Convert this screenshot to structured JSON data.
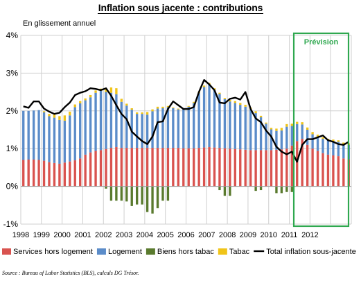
{
  "chart_data": {
    "type": "bar",
    "stacked": true,
    "title": "Inflation sous jacente : contributions",
    "subtitle": "En glissement annuel",
    "y_tick_labels": [
      "-1%",
      "0%",
      "1%",
      "2%",
      "3%",
      "4%"
    ],
    "y_ticks": [
      -1,
      0,
      1,
      2,
      3,
      4
    ],
    "ylim": [
      -1,
      4
    ],
    "x_tick_labels": [
      "1998",
      "1999",
      "2000",
      "2001",
      "2002",
      "2003",
      "2004",
      "2005",
      "2006",
      "2007",
      "2008",
      "2009",
      "2010",
      "2011",
      "2012"
    ],
    "period": {
      "start_year": 1998,
      "start_quarter": 1,
      "end_year": 2012,
      "end_quarter": 4,
      "frequency": "quarterly"
    },
    "forecast_label": "Prévision",
    "forecast_start": {
      "year": 2011,
      "quarter": 2
    },
    "grid": true,
    "legend_position": "bottom",
    "series": [
      {
        "name": "Services hors logement",
        "color": "#d9534f",
        "values": [
          0.7,
          0.71,
          0.71,
          0.7,
          0.68,
          0.64,
          0.62,
          0.6,
          0.63,
          0.66,
          0.69,
          0.74,
          0.84,
          0.9,
          0.94,
          0.96,
          0.99,
          1.02,
          1.04,
          1.02,
          1.02,
          1.02,
          1.02,
          1.02,
          1.02,
          1.02,
          1.02,
          1.02,
          1.02,
          1.02,
          1.02,
          1.01,
          1.01,
          1.01,
          1.02,
          1.03,
          1.04,
          1.03,
          1.02,
          1.01,
          1.0,
          0.99,
          0.98,
          0.97,
          0.96,
          0.96,
          0.96,
          0.96,
          0.96,
          0.97,
          0.98,
          1.0,
          1.08,
          1.2,
          1.26,
          1.1,
          1.0,
          0.94,
          0.88,
          0.84,
          0.82,
          0.8,
          0.74,
          0.72
        ]
      },
      {
        "name": "Logement",
        "color": "#5b8cc9",
        "values": [
          1.3,
          1.29,
          1.3,
          1.32,
          1.28,
          1.22,
          1.2,
          1.16,
          1.11,
          1.22,
          1.41,
          1.46,
          1.44,
          1.46,
          1.54,
          1.57,
          1.51,
          1.46,
          1.4,
          1.22,
          1.12,
          1.01,
          0.9,
          0.9,
          0.88,
          0.97,
          1.04,
          1.05,
          1.08,
          1.05,
          1.02,
          1.03,
          1.1,
          1.2,
          1.45,
          1.6,
          1.66,
          1.53,
          1.43,
          1.3,
          1.25,
          1.22,
          1.18,
          1.14,
          1.08,
          0.98,
          0.87,
          0.7,
          0.55,
          0.5,
          0.5,
          0.58,
          0.52,
          0.45,
          0.38,
          0.4,
          0.38,
          0.38,
          0.38,
          0.38,
          0.38,
          0.38,
          0.38,
          0.38
        ]
      },
      {
        "name": "Biens hors tabac",
        "color": "#5a7a2e",
        "values": [
          0.0,
          0.0,
          0.0,
          0.0,
          0.0,
          0.0,
          0.0,
          0.0,
          0.0,
          0.0,
          0.0,
          0.0,
          0.0,
          0.0,
          0.0,
          0.0,
          -0.06,
          -0.38,
          -0.38,
          -0.38,
          -0.4,
          -0.52,
          -0.48,
          -0.48,
          -0.68,
          -0.72,
          -0.58,
          -0.38,
          -0.38,
          0.0,
          0.0,
          0.0,
          0.0,
          0.0,
          0.0,
          0.0,
          0.0,
          0.0,
          -0.1,
          -0.25,
          -0.25,
          0.0,
          0.0,
          0.0,
          0.0,
          -0.12,
          -0.1,
          0.0,
          0.0,
          -0.18,
          -0.18,
          -0.15,
          -0.15,
          0.0,
          0.0,
          0.0,
          0.0,
          0.0,
          0.0,
          0.0,
          0.0,
          0.0,
          0.0,
          0.0
        ]
      },
      {
        "name": "Tabac",
        "color": "#f0c419",
        "values": [
          0.0,
          0.0,
          0.0,
          0.0,
          0.03,
          0.06,
          0.08,
          0.1,
          0.14,
          0.1,
          0.07,
          0.06,
          0.05,
          0.06,
          0.06,
          0.06,
          0.1,
          0.14,
          0.16,
          0.08,
          0.05,
          0.04,
          0.04,
          0.04,
          0.07,
          0.05,
          0.05,
          0.04,
          0.03,
          0.02,
          0.02,
          0.02,
          0.02,
          0.03,
          0.04,
          0.04,
          0.04,
          0.04,
          0.03,
          0.03,
          0.04,
          0.05,
          0.05,
          0.05,
          0.05,
          0.05,
          0.04,
          0.03,
          0.04,
          0.06,
          0.07,
          0.07,
          0.06,
          0.06,
          0.06,
          0.06,
          0.06,
          0.05,
          0.04,
          0.04,
          0.04,
          0.04,
          0.04,
          0.04
        ]
      }
    ],
    "line": {
      "name": "Total inflation sous-jacente",
      "color": "#000000",
      "values": [
        2.12,
        2.08,
        2.25,
        2.25,
        2.06,
        1.98,
        1.92,
        1.95,
        2.1,
        2.22,
        2.42,
        2.48,
        2.52,
        2.6,
        2.58,
        2.55,
        2.6,
        2.4,
        2.15,
        1.92,
        1.78,
        1.45,
        1.32,
        1.2,
        1.12,
        1.32,
        1.7,
        1.72,
        2.05,
        2.25,
        2.15,
        2.05,
        2.05,
        2.1,
        2.5,
        2.82,
        2.7,
        2.55,
        2.22,
        2.2,
        2.32,
        2.35,
        2.3,
        2.5,
        2.05,
        1.8,
        1.7,
        1.48,
        1.32,
        1.05,
        0.92,
        0.85,
        0.92,
        0.65,
        1.1,
        1.25,
        1.25,
        1.3,
        1.35,
        1.22,
        1.18,
        1.12,
        1.1,
        1.18
      ]
    }
  },
  "source": "Source : Bureau of Labor Statistics (BLS), calculs DG Trésor."
}
